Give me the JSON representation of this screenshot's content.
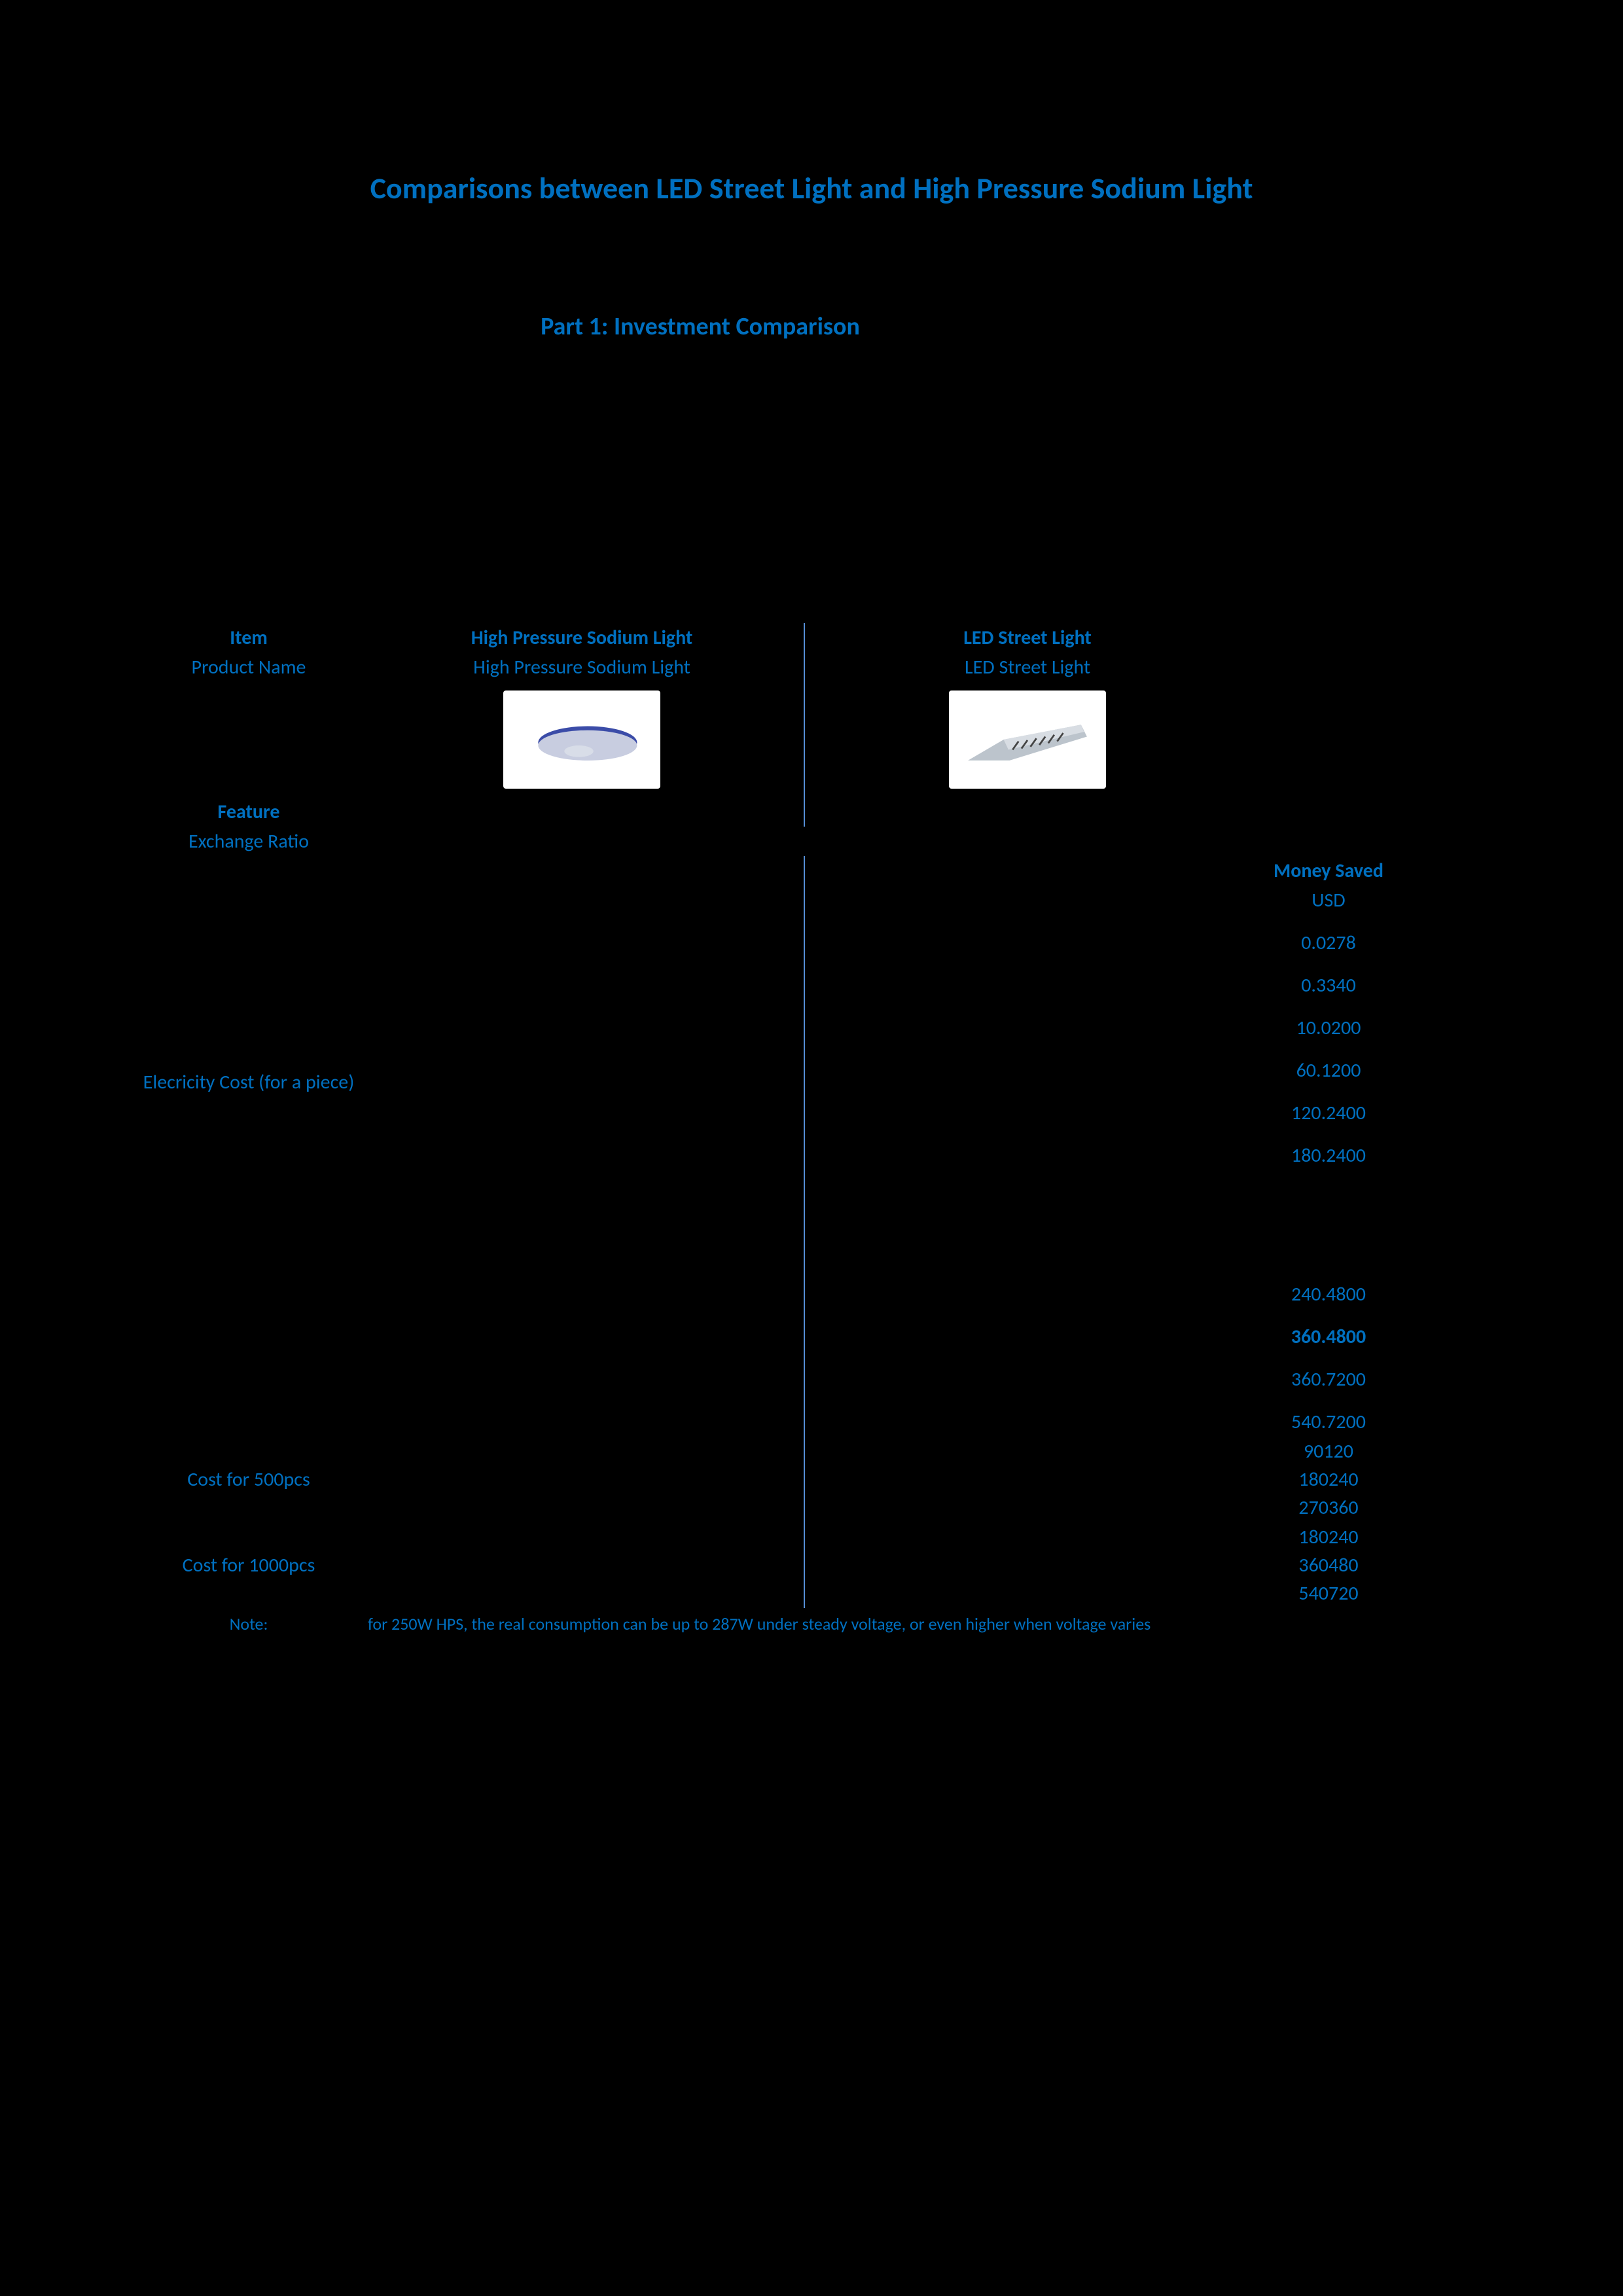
{
  "title": "Comparisons between LED Street Light and High Pressure Sodium Light",
  "subtitle": "Part 1: Investment Comparison",
  "headers": {
    "item": "Item",
    "hps": "High Pressure Sodium Light",
    "led": "LED Street Light",
    "saved": "Money Saved"
  },
  "product_row": {
    "label": "Product Name",
    "hps": "High Pressure Sodium Light",
    "led": "LED Street Light"
  },
  "feature_row": {
    "label": "Feature"
  },
  "exchange_row": {
    "label": "Exchange Ratio"
  },
  "electricity_label": "Elecricity Cost (for a piece)",
  "saved_values": [
    "USD",
    "0.0278",
    "0.3340",
    "10.0200",
    "60.1200",
    "120.2400",
    "180.2400",
    "240.4800",
    "360.4800",
    "360.7200",
    "540.7200"
  ],
  "cost500_label": "Cost for 500pcs",
  "cost500_saved": [
    "90120",
    "180240",
    "270360"
  ],
  "cost1000_label": "Cost for 1000pcs",
  "cost1000_saved": [
    "180240",
    "360480",
    "540720"
  ],
  "saved_bold_index": 8,
  "note": {
    "label": "Note:",
    "text": "for 250W HPS, the real consumption can be up to 287W under steady voltage, or even higher when voltage varies"
  },
  "colors": {
    "blue": "#0070c0",
    "bg": "#000000",
    "divider": "#548dd4"
  }
}
